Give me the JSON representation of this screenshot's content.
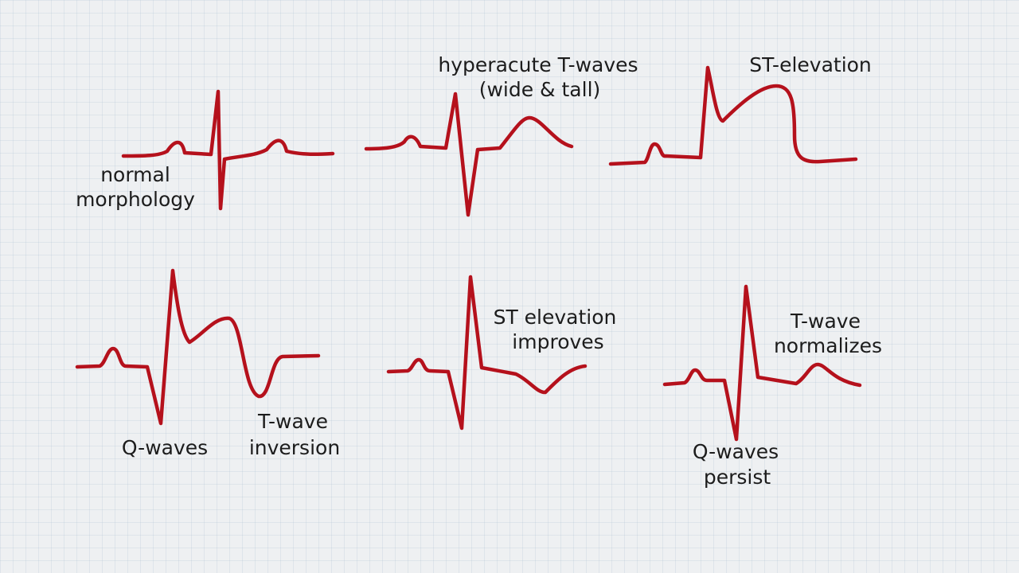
{
  "panels": [
    {
      "labels": [
        [
          "normal",
          "morphology"
        ]
      ]
    },
    {
      "labels": [
        [
          "hyperacute T-waves",
          "(wide & tall)"
        ]
      ]
    },
    {
      "labels": [
        [
          "ST-elevation"
        ]
      ]
    },
    {
      "labels": [
        [
          "Q-waves"
        ],
        [
          "T-wave",
          "inversion"
        ]
      ]
    },
    {
      "labels": [
        [
          "ST elevation",
          "improves"
        ]
      ]
    },
    {
      "labels": [
        [
          "T-wave",
          "normalizes"
        ],
        [
          "Q-waves",
          "persist"
        ]
      ]
    }
  ]
}
